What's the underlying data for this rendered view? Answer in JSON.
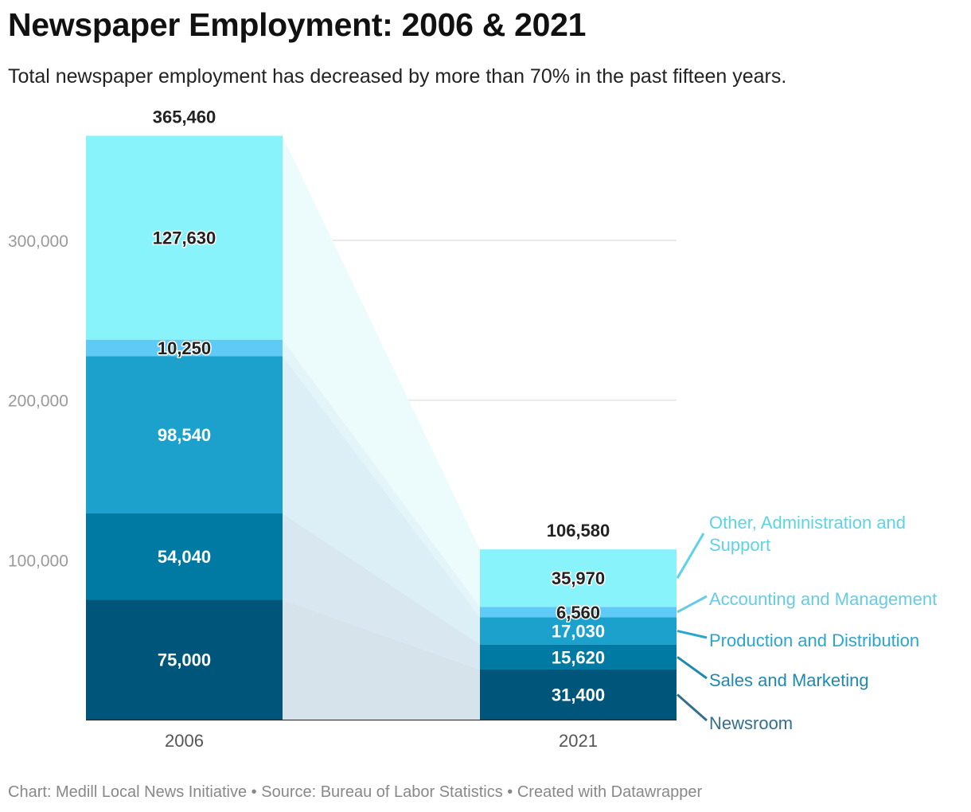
{
  "title": "Newspaper Employment: 2006 & 2021",
  "subtitle": "Total newspaper employment has decreased by more than 70% in the past fifteen years.",
  "footer": "Chart: Medill Local News Initiative • Source: Bureau of Labor Statistics • Created with Datawrapper",
  "chart_data": {
    "type": "bar",
    "stacked": true,
    "categories": [
      "2006",
      "2021"
    ],
    "series": [
      {
        "name": "Newsroom",
        "color": "#00567a",
        "values": [
          75000,
          31400
        ]
      },
      {
        "name": "Sales and Marketing",
        "color": "#007aa3",
        "values": [
          54040,
          15620
        ]
      },
      {
        "name": "Production and Distribution",
        "color": "#1ba1cc",
        "values": [
          98540,
          17030
        ]
      },
      {
        "name": "Accounting and Management",
        "color": "#5fcaf5",
        "values": [
          10250,
          6560
        ]
      },
      {
        "name": "Other, Administration and Support",
        "color": "#88f3fb",
        "values": [
          127630,
          35970
        ]
      }
    ],
    "totals": [
      "365,460",
      "106,580"
    ],
    "value_labels": [
      [
        "75,000",
        "54,040",
        "98,540",
        "10,250",
        "127,630"
      ],
      [
        "31,400",
        "15,620",
        "17,030",
        "6,560",
        "35,970"
      ]
    ],
    "legend_labels": [
      [
        "Newsroom"
      ],
      [
        "Sales and Marketing"
      ],
      [
        "Production and Distribution"
      ],
      [
        "Accounting and Management"
      ],
      [
        "Other, Administration and",
        "Support"
      ]
    ],
    "legend_colors": [
      "#346f8e",
      "#1e8aae",
      "#2aa5cf",
      "#66cbe8",
      "#5dd3e6"
    ],
    "y_ticks": [
      100000,
      200000,
      300000
    ],
    "y_tick_labels": [
      "100,000",
      "200,000",
      "300,000"
    ],
    "ylim": [
      0,
      365460
    ],
    "grid": true,
    "legend_position": "right, direct labels"
  }
}
